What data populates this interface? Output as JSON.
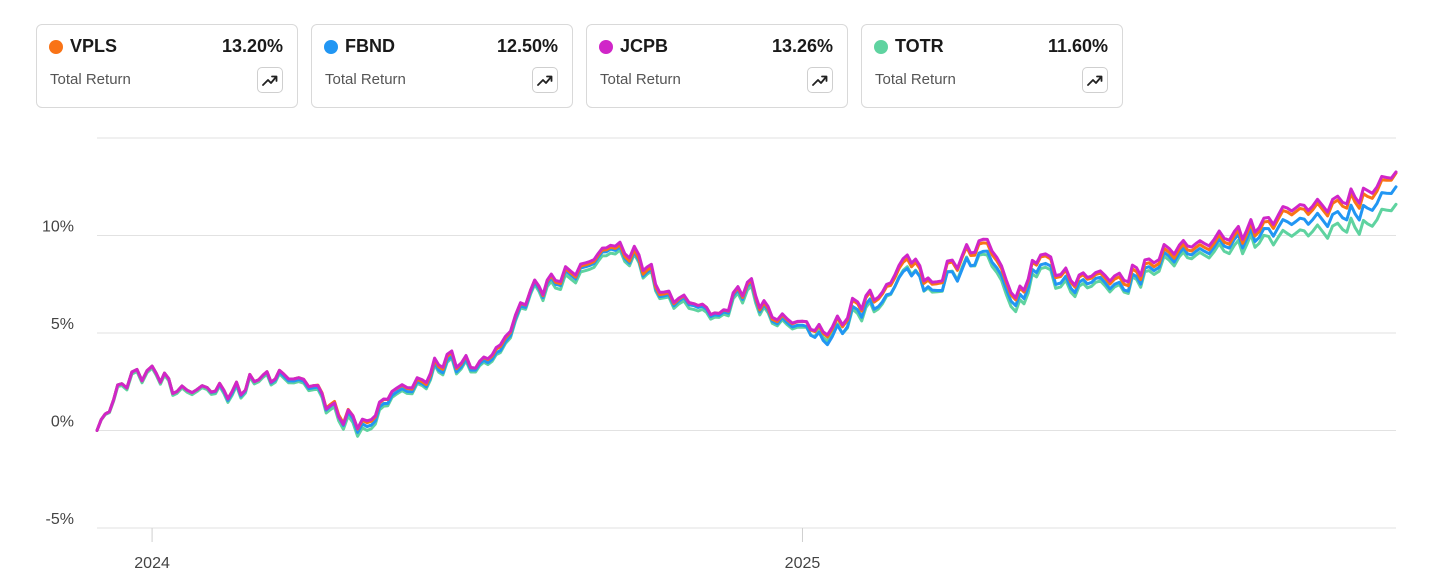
{
  "cards": [
    {
      "ticker": "VPLS",
      "value": "13.20%",
      "metric": "Total Return",
      "color": "#f97316",
      "icon": "trend-up-icon"
    },
    {
      "ticker": "FBND",
      "value": "12.50%",
      "metric": "Total Return",
      "color": "#2196f3",
      "icon": "trend-up-icon"
    },
    {
      "ticker": "JCPB",
      "value": "13.26%",
      "metric": "Total Return",
      "color": "#d026c8",
      "icon": "trend-up-icon"
    },
    {
      "ticker": "TOTR",
      "value": "11.60%",
      "metric": "Total Return",
      "color": "#5fd3a0",
      "icon": "trend-up-icon"
    }
  ],
  "chart_data": {
    "type": "line",
    "title": "",
    "xlabel": "",
    "ylabel": "",
    "x_ticks": [
      "2024",
      "2025"
    ],
    "y_ticks": [
      "10%",
      "5%",
      "0%",
      "-5%"
    ],
    "ylim": [
      -5,
      15
    ],
    "grid": true,
    "x": [
      "2023-12-01",
      "2023-12-15",
      "2024-01-01",
      "2024-01-15",
      "2024-02-01",
      "2024-02-15",
      "2024-03-01",
      "2024-03-15",
      "2024-04-01",
      "2024-04-15",
      "2024-05-01",
      "2024-05-15",
      "2024-06-01",
      "2024-06-15",
      "2024-07-01",
      "2024-07-15",
      "2024-08-01",
      "2024-08-15",
      "2024-09-01",
      "2024-09-15",
      "2024-10-01",
      "2024-10-15",
      "2024-11-01",
      "2024-11-15",
      "2024-12-01",
      "2024-12-15",
      "2025-01-01",
      "2025-01-15",
      "2025-02-01",
      "2025-02-15",
      "2025-03-01",
      "2025-03-15",
      "2025-04-01",
      "2025-04-15",
      "2025-05-01",
      "2025-05-15",
      "2025-06-01",
      "2025-06-15",
      "2025-07-01",
      "2025-07-15",
      "2025-08-01",
      "2025-08-15",
      "2025-09-01",
      "2025-09-15",
      "2025-10-01",
      "2025-10-15",
      "2025-11-01",
      "2025-11-15",
      "2025-12-01"
    ],
    "series": [
      {
        "name": "VPLS",
        "color": "#f97316",
        "values": [
          0.0,
          2.4,
          3.3,
          2.0,
          2.2,
          2.0,
          2.6,
          2.9,
          2.3,
          0.8,
          0.4,
          2.0,
          2.5,
          3.8,
          3.2,
          4.3,
          7.2,
          7.6,
          8.5,
          9.4,
          8.8,
          7.0,
          6.5,
          6.0,
          7.5,
          5.7,
          5.6,
          4.8,
          6.5,
          7.0,
          8.8,
          7.5,
          8.9,
          9.6,
          6.7,
          8.9,
          7.6,
          8.0,
          7.5,
          8.6,
          9.3,
          9.4,
          10.0,
          10.2,
          11.2,
          11.3,
          11.5,
          12.0,
          13.2
        ]
      },
      {
        "name": "FBND",
        "color": "#2196f3",
        "values": [
          0.0,
          2.4,
          3.3,
          2.0,
          2.2,
          1.9,
          2.6,
          2.8,
          2.2,
          0.7,
          0.2,
          1.8,
          2.4,
          3.6,
          3.1,
          4.1,
          7.1,
          7.5,
          8.4,
          9.3,
          8.7,
          6.9,
          6.4,
          5.9,
          7.4,
          5.6,
          5.4,
          4.4,
          6.2,
          6.6,
          8.3,
          7.2,
          8.3,
          9.2,
          6.4,
          8.5,
          7.3,
          7.8,
          7.2,
          8.4,
          9.1,
          9.2,
          9.8,
          9.9,
          10.7,
          10.8,
          10.9,
          11.4,
          12.5
        ]
      },
      {
        "name": "JCPB",
        "color": "#d026c8",
        "values": [
          0.0,
          2.4,
          3.3,
          2.0,
          2.2,
          2.0,
          2.6,
          2.9,
          2.3,
          0.7,
          0.5,
          2.0,
          2.6,
          3.9,
          3.2,
          4.4,
          7.2,
          7.7,
          8.6,
          9.5,
          9.0,
          7.1,
          6.5,
          6.0,
          7.6,
          5.8,
          5.6,
          4.9,
          6.6,
          7.1,
          9.0,
          7.6,
          9.0,
          9.8,
          6.8,
          9.0,
          7.7,
          8.1,
          7.7,
          8.8,
          9.5,
          9.6,
          10.2,
          10.4,
          11.4,
          11.5,
          11.7,
          12.3,
          13.26
        ]
      },
      {
        "name": "TOTR",
        "color": "#5fd3a0",
        "values": [
          0.0,
          2.3,
          3.2,
          1.9,
          2.1,
          1.8,
          2.5,
          2.7,
          2.1,
          0.5,
          0.0,
          1.7,
          2.3,
          3.5,
          3.0,
          4.0,
          7.0,
          7.3,
          8.2,
          9.1,
          8.6,
          6.8,
          6.2,
          5.8,
          7.2,
          5.5,
          5.3,
          4.6,
          6.0,
          6.5,
          8.4,
          7.1,
          8.4,
          9.0,
          6.1,
          8.3,
          7.1,
          7.6,
          7.1,
          8.2,
          8.9,
          9.0,
          9.5,
          9.6,
          10.1,
          10.2,
          10.3,
          10.6,
          11.6
        ]
      }
    ]
  }
}
